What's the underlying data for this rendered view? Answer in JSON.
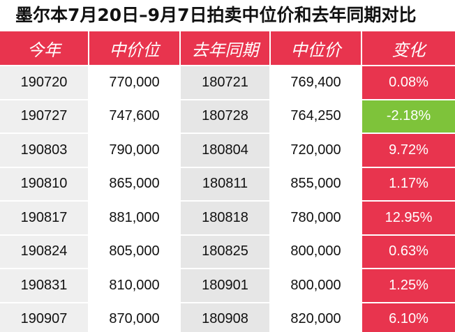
{
  "title": "墨尔本7月20日–9月7日拍卖中位价和去年同期对比",
  "colors": {
    "header": "#e8344e",
    "increase": "#e8344e",
    "decrease": "#7ec33a"
  },
  "chart_data": {
    "type": "table",
    "columns": [
      "今年",
      "中价位",
      "去年同期",
      "中位价",
      "变化"
    ],
    "rows": [
      [
        "190720",
        "770,000",
        "180721",
        "769,400",
        "0.08%"
      ],
      [
        "190727",
        "747,600",
        "180728",
        "764,250",
        "-2.18%"
      ],
      [
        "190803",
        "790,000",
        "180804",
        "720,000",
        "9.72%"
      ],
      [
        "190810",
        "865,000",
        "180811",
        "855,000",
        "1.17%"
      ],
      [
        "190817",
        "881,000",
        "180818",
        "780,000",
        "12.95%"
      ],
      [
        "190824",
        "805,000",
        "180825",
        "800,000",
        "0.63%"
      ],
      [
        "190831",
        "810,000",
        "180901",
        "800,000",
        "1.25%"
      ],
      [
        "190907",
        "870,000",
        "180908",
        "820,000",
        "6.10%"
      ]
    ]
  }
}
